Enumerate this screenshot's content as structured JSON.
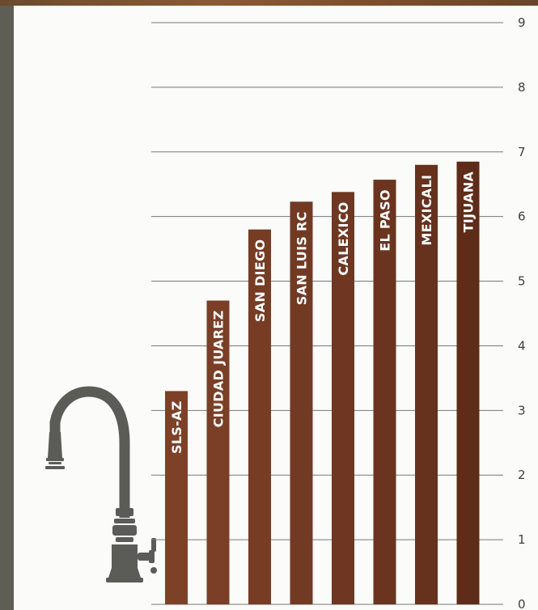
{
  "chart_data": {
    "type": "bar",
    "orientation": "vertical",
    "categories": [
      "SLS-AZ",
      "CIUDAD JUAREZ",
      "SAN DIEGO",
      "SAN LUIS RC",
      "CALEXICO",
      "EL PASO",
      "MEXICALI",
      "TIJUANA"
    ],
    "values": [
      3.3,
      4.7,
      5.8,
      6.23,
      6.38,
      6.57,
      6.8,
      6.85
    ],
    "ylim": [
      0,
      9
    ],
    "yticks": [
      "0",
      "1",
      "2",
      "3",
      "4",
      "5",
      "6",
      "7",
      "8",
      "9"
    ],
    "y_axis_side": "right",
    "grid": true,
    "bar_labels_inside": "vertical",
    "colors": [
      "#7d4128",
      "#7a3f26",
      "#763c24",
      "#733a23",
      "#6f3721",
      "#6a341f",
      "#66311d",
      "#5e2c18"
    ]
  },
  "decoration": {
    "icon": "faucet-icon",
    "color": "#5b5b58"
  }
}
